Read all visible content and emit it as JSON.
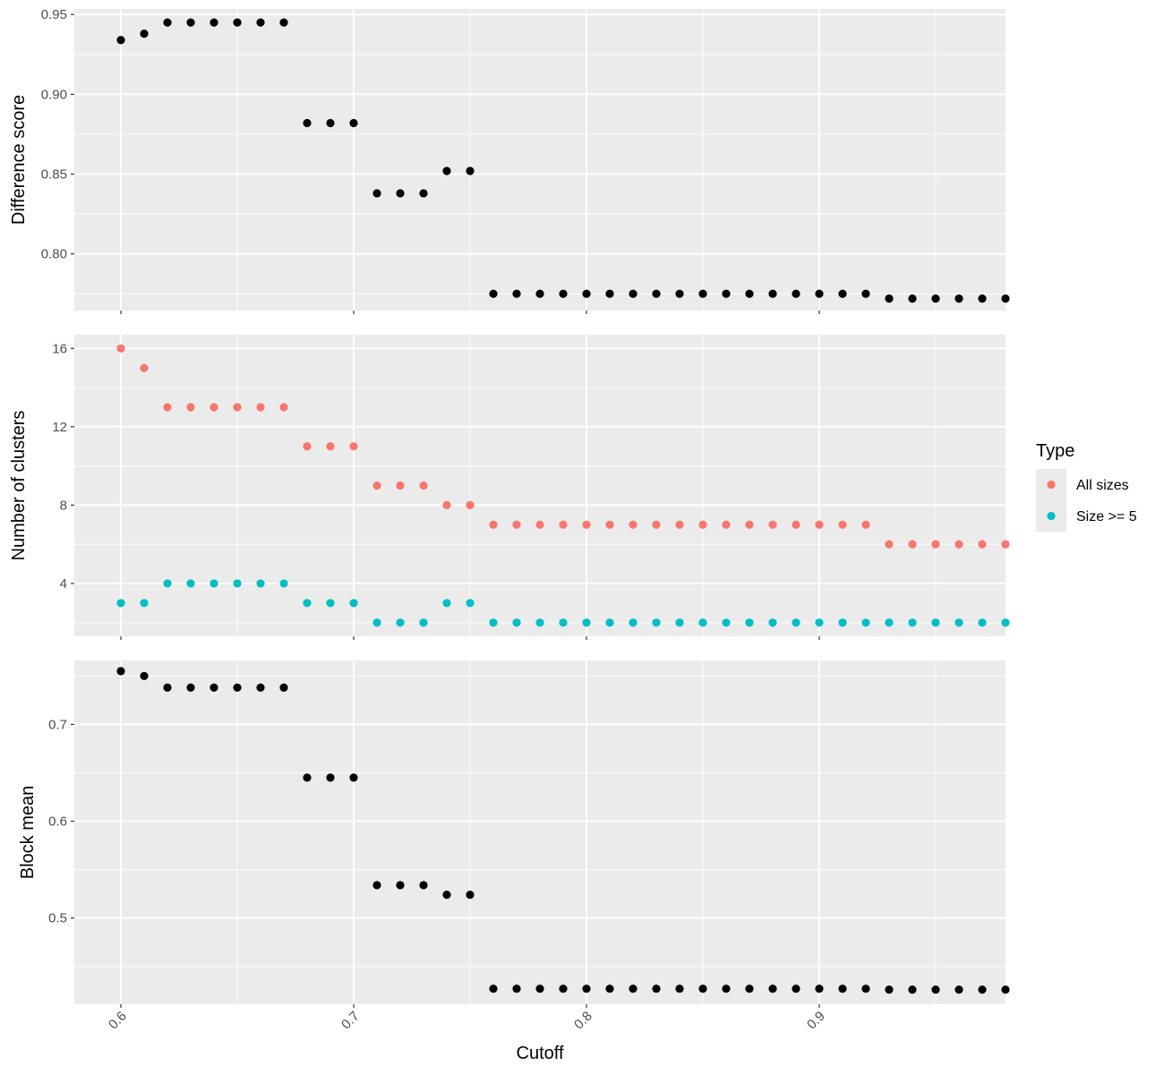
{
  "chart_data": {
    "type": "scatter",
    "x_axis": {
      "label": "Cutoff",
      "range": [
        0.58,
        0.98
      ],
      "ticks": [
        0.6,
        0.7,
        0.8,
        0.9
      ],
      "tick_labels": [
        "0.6",
        "0.7",
        "0.8",
        "0.9"
      ],
      "tick_label_rotation": "-45deg"
    },
    "x": [
      0.6,
      0.61,
      0.62,
      0.63,
      0.64,
      0.65,
      0.66,
      0.67,
      0.68,
      0.69,
      0.7,
      0.71,
      0.72,
      0.73,
      0.74,
      0.75,
      0.76,
      0.77,
      0.78,
      0.79,
      0.8,
      0.81,
      0.82,
      0.83,
      0.84,
      0.85,
      0.86,
      0.87,
      0.88,
      0.89,
      0.9,
      0.91,
      0.92,
      0.93,
      0.94,
      0.95,
      0.96,
      0.97,
      0.98
    ],
    "grid": true,
    "panel_background": "#ebebeb",
    "grid_color": "#ffffff",
    "panels": [
      {
        "name": "difference-score",
        "ylabel": "Difference score",
        "ylim": [
          0.7645,
          0.9535
        ],
        "y_ticks": [
          0.8,
          0.85,
          0.9,
          0.95
        ],
        "y_tick_labels": [
          "0.80",
          "0.85",
          "0.90",
          "0.95"
        ],
        "series": [
          {
            "color": "#000000",
            "values": [
              0.934,
              0.938,
              0.945,
              0.945,
              0.945,
              0.945,
              0.945,
              0.945,
              0.882,
              0.882,
              0.882,
              0.838,
              0.838,
              0.838,
              0.852,
              0.852,
              0.775,
              0.775,
              0.775,
              0.775,
              0.775,
              0.775,
              0.775,
              0.775,
              0.775,
              0.775,
              0.775,
              0.775,
              0.775,
              0.775,
              0.775,
              0.775,
              0.775,
              0.772,
              0.772,
              0.772,
              0.772,
              0.772,
              0.772
            ]
          }
        ]
      },
      {
        "name": "number-of-clusters",
        "ylabel": "Number of clusters",
        "ylim": [
          1.3,
          16.7
        ],
        "y_ticks": [
          4,
          8,
          12,
          16
        ],
        "y_tick_labels": [
          "4",
          "8",
          "12",
          "16"
        ],
        "series": [
          {
            "name": "All sizes",
            "color": "#f8766d",
            "values": [
              16,
              15,
              13,
              13,
              13,
              13,
              13,
              13,
              11,
              11,
              11,
              9,
              9,
              9,
              8,
              8,
              7,
              7,
              7,
              7,
              7,
              7,
              7,
              7,
              7,
              7,
              7,
              7,
              7,
              7,
              7,
              7,
              7,
              6,
              6,
              6,
              6,
              6,
              6
            ]
          },
          {
            "name": "Size >= 5",
            "color": "#00bfc4",
            "values": [
              3,
              3,
              4,
              4,
              4,
              4,
              4,
              4,
              3,
              3,
              3,
              2,
              2,
              2,
              3,
              3,
              2,
              2,
              2,
              2,
              2,
              2,
              2,
              2,
              2,
              2,
              2,
              2,
              2,
              2,
              2,
              2,
              2,
              2,
              2,
              2,
              2,
              2,
              2
            ]
          }
        ]
      },
      {
        "name": "block-mean",
        "ylabel": "Block mean",
        "ylim": [
          0.411,
          0.766
        ],
        "y_ticks": [
          0.5,
          0.6,
          0.7
        ],
        "y_tick_labels": [
          "0.5",
          "0.6",
          "0.7"
        ],
        "series": [
          {
            "color": "#000000",
            "values": [
              0.755,
              0.75,
              0.738,
              0.738,
              0.738,
              0.738,
              0.738,
              0.738,
              0.645,
              0.645,
              0.645,
              0.534,
              0.534,
              0.534,
              0.524,
              0.524,
              0.427,
              0.427,
              0.427,
              0.427,
              0.427,
              0.427,
              0.427,
              0.427,
              0.427,
              0.427,
              0.427,
              0.427,
              0.427,
              0.427,
              0.427,
              0.427,
              0.427,
              0.426,
              0.426,
              0.426,
              0.426,
              0.426,
              0.426
            ]
          }
        ]
      }
    ],
    "legend": {
      "title": "Type",
      "placement": "right",
      "entries": [
        {
          "label": "All sizes",
          "color": "#f8766d"
        },
        {
          "label": "Size >= 5",
          "color": "#00bfc4"
        }
      ]
    }
  }
}
